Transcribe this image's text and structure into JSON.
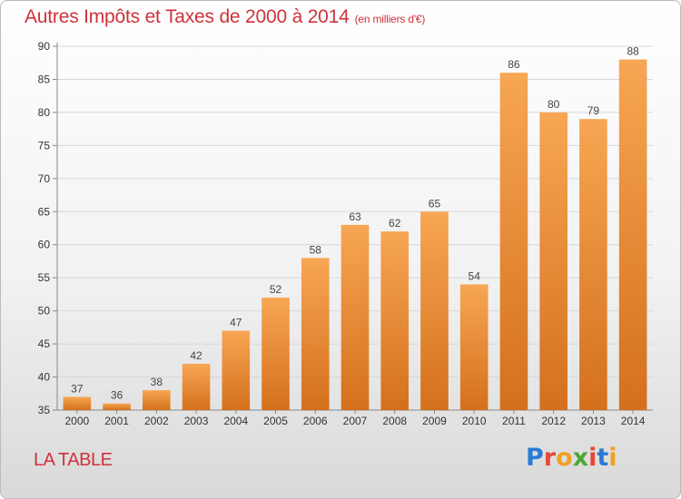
{
  "title": {
    "main": "Autres Impôts et Taxes de 2000 à 2014",
    "unit": "(en milliers d'€)"
  },
  "place_name": "LA TABLE",
  "logo": {
    "text": "Proxiti",
    "letter_colors": [
      "#2a7bd6",
      "#e8473a",
      "#f0a020",
      "#4aa832",
      "#e8473a",
      "#2a7bd6",
      "#f0a020"
    ]
  },
  "colors": {
    "title": "#d0313a",
    "bar_top": "#f7a653",
    "bar_bottom": "#d4701c",
    "grid": "#d8d8d8"
  },
  "chart_data": {
    "type": "bar",
    "title": "Autres Impôts et Taxes de 2000 à 2014",
    "subtitle": "(en milliers d'€)",
    "xlabel": "",
    "ylabel": "",
    "categories": [
      "2000",
      "2001",
      "2002",
      "2003",
      "2004",
      "2005",
      "2006",
      "2007",
      "2008",
      "2009",
      "2010",
      "2011",
      "2012",
      "2013",
      "2014"
    ],
    "values": [
      37,
      36,
      38,
      42,
      47,
      52,
      58,
      63,
      62,
      65,
      54,
      86,
      80,
      79,
      88
    ],
    "ylim": [
      35,
      90
    ],
    "yticks": [
      35,
      40,
      45,
      50,
      55,
      60,
      65,
      70,
      75,
      80,
      85,
      90
    ],
    "grid": true,
    "legend": "none"
  }
}
